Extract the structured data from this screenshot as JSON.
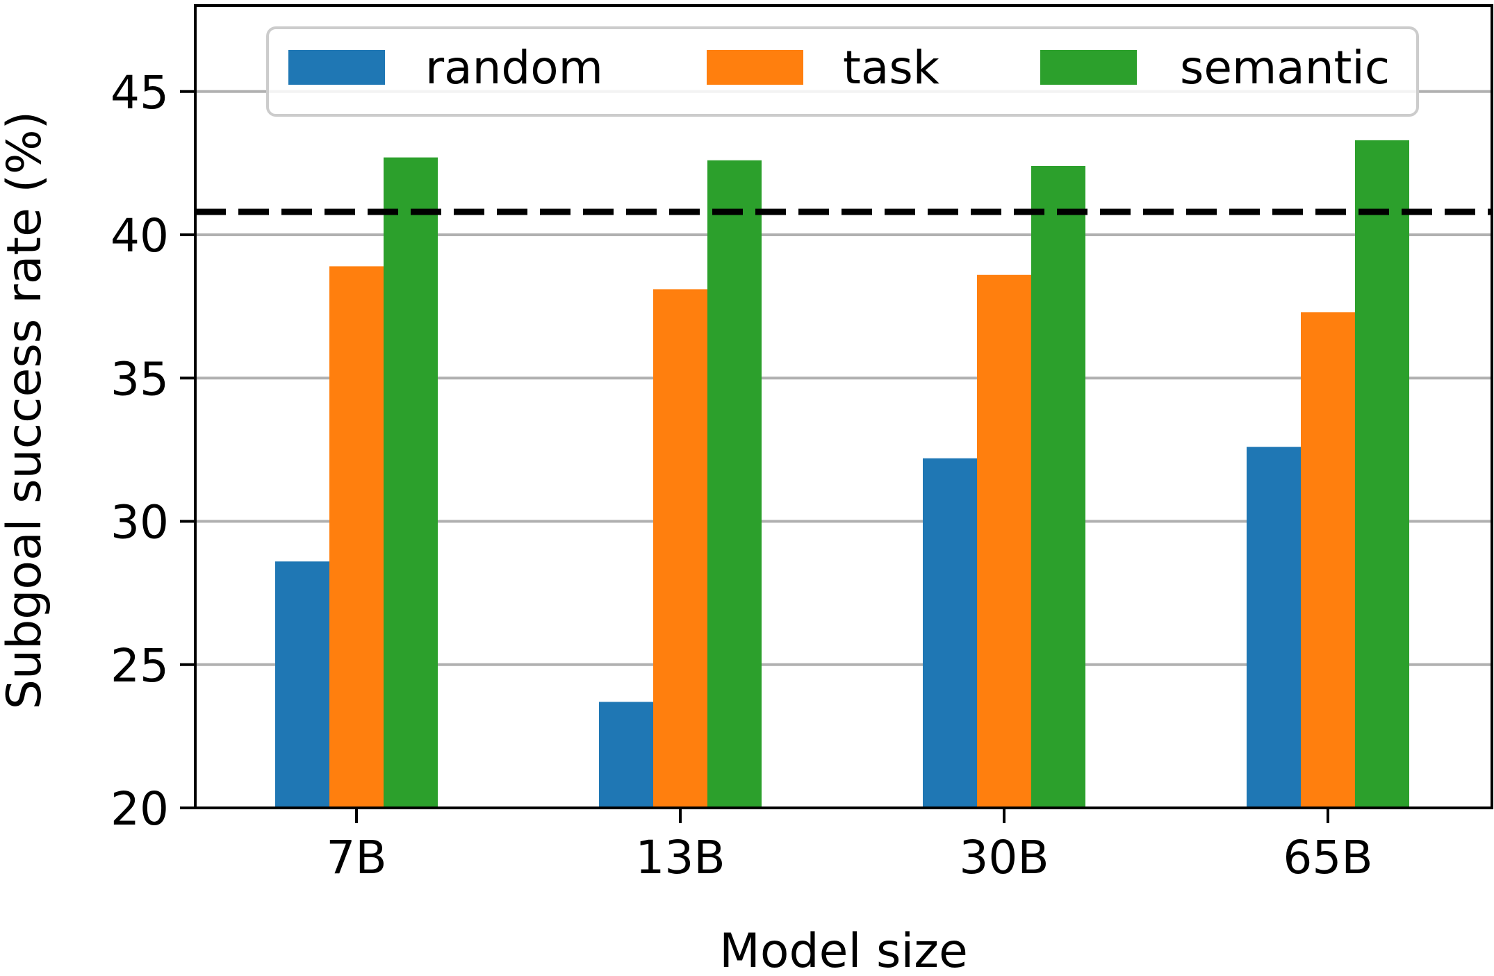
{
  "chart_data": {
    "type": "bar",
    "xlabel": "Model size",
    "ylabel": "Subgoal success rate (%)",
    "categories": [
      "7B",
      "13B",
      "30B",
      "65B"
    ],
    "ylim": [
      20,
      48
    ],
    "yticks": [
      "20",
      "25",
      "30",
      "35",
      "40",
      "45"
    ],
    "grid": "horizontal",
    "legend": "top, horizontal, framed",
    "reference_line": {
      "value": 40.8,
      "style": "dashed",
      "color": "#000000"
    },
    "series": [
      {
        "name": "random",
        "color": "#1f77b4",
        "values": [
          28.6,
          23.7,
          32.2,
          32.6
        ]
      },
      {
        "name": "task",
        "color": "#ff7f0e",
        "values": [
          38.9,
          38.1,
          38.6,
          37.3
        ]
      },
      {
        "name": "semantic",
        "color": "#2ca02c",
        "values": [
          42.7,
          42.6,
          42.4,
          43.3
        ]
      }
    ]
  }
}
